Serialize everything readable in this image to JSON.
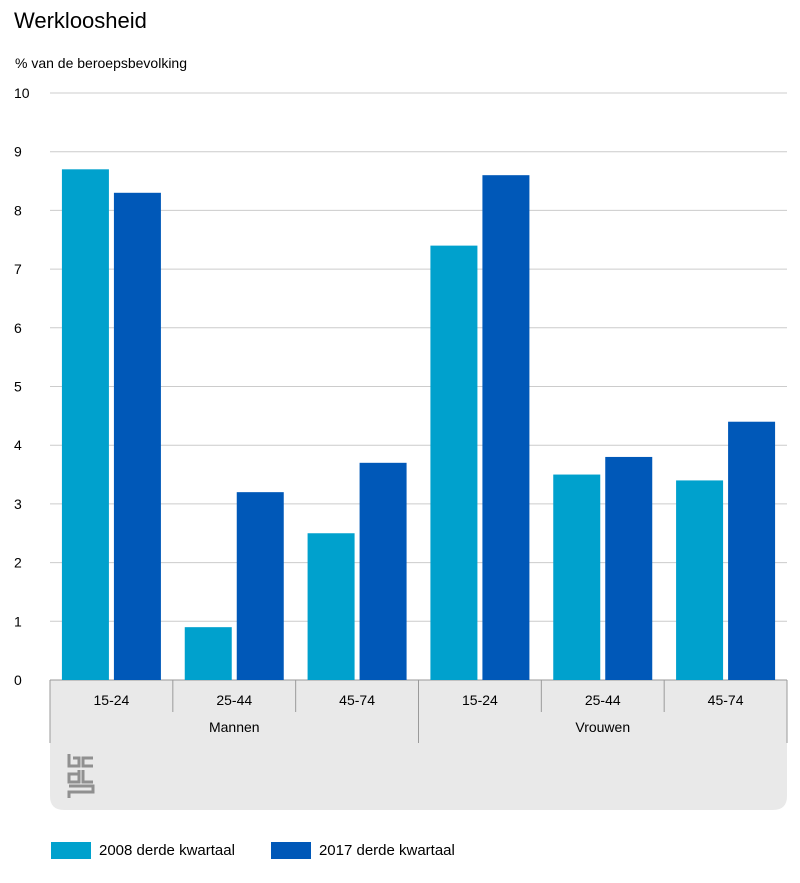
{
  "title": "Werkloosheid",
  "ylabel": "% van de beroepsbevolking",
  "colors": {
    "series1": "#00a1cd",
    "series2": "#0058b8",
    "grid": "#cccccc",
    "panel": "#e9e9e9"
  },
  "chart_data": {
    "type": "bar",
    "title": "Werkloosheid",
    "ylabel": "% van de beroepsbevolking",
    "ylim": [
      0,
      10
    ],
    "yticks": [
      0,
      1,
      2,
      3,
      4,
      5,
      6,
      7,
      8,
      9,
      10
    ],
    "grid": true,
    "legend_position": "bottom",
    "groups": [
      {
        "name": "Mannen",
        "categories": [
          "15-24",
          "25-44",
          "45-74"
        ]
      },
      {
        "name": "Vrouwen",
        "categories": [
          "15-24",
          "25-44",
          "45-74"
        ]
      }
    ],
    "categories": [
      "15-24",
      "25-44",
      "45-74",
      "15-24",
      "25-44",
      "45-74"
    ],
    "series": [
      {
        "name": "2008 derde kwartaal",
        "color": "#00a1cd",
        "values": [
          8.7,
          0.9,
          2.5,
          7.4,
          3.5,
          3.4
        ]
      },
      {
        "name": "2017 derde kwartaal",
        "color": "#0058b8",
        "values": [
          8.3,
          3.2,
          3.7,
          8.6,
          3.8,
          4.4
        ]
      }
    ]
  },
  "legend": [
    {
      "label": "2008 derde kwartaal",
      "color": "#00a1cd"
    },
    {
      "label": "2017 derde kwartaal",
      "color": "#0058b8"
    }
  ],
  "logo_icon": "cbs-logo-icon"
}
